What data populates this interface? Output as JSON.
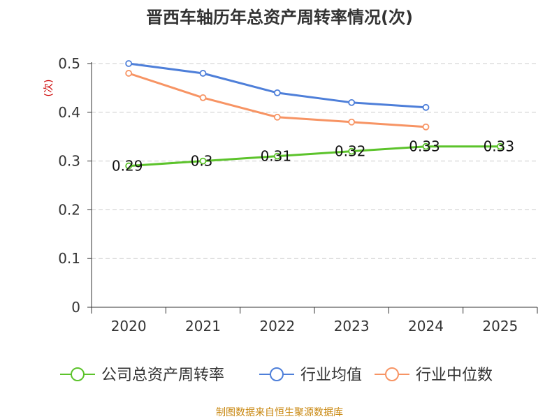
{
  "chart_data": {
    "type": "line",
    "title": "晋西车轴历年总资产周转率情况(次)",
    "ylabel": "(次)",
    "xlabel": "",
    "categories": [
      "2020",
      "2021",
      "2022",
      "2023",
      "2024",
      "2025"
    ],
    "ylim": [
      0,
      0.5
    ],
    "yticks": [
      "0",
      "0.1",
      "0.2",
      "0.3",
      "0.4",
      "0.5"
    ],
    "grid": true,
    "legend_position": "bottom",
    "series": [
      {
        "name": "公司总资产周转率",
        "color": "#5cc32b",
        "values": [
          0.29,
          0.3,
          0.31,
          0.32,
          0.33,
          0.33
        ],
        "show_labels": true,
        "labels": [
          "0.29",
          "0.3",
          "0.31",
          "0.32",
          "0.33",
          "0.33"
        ]
      },
      {
        "name": "行业均值",
        "color": "#4e7fd9",
        "values": [
          0.5,
          0.48,
          0.44,
          0.42,
          0.41,
          null
        ],
        "show_labels": false
      },
      {
        "name": "行业中位数",
        "color": "#f79464",
        "values": [
          0.48,
          0.43,
          0.39,
          0.38,
          0.37,
          null
        ],
        "show_labels": false
      }
    ],
    "source": "制图数据来自恒生聚源数据库"
  }
}
